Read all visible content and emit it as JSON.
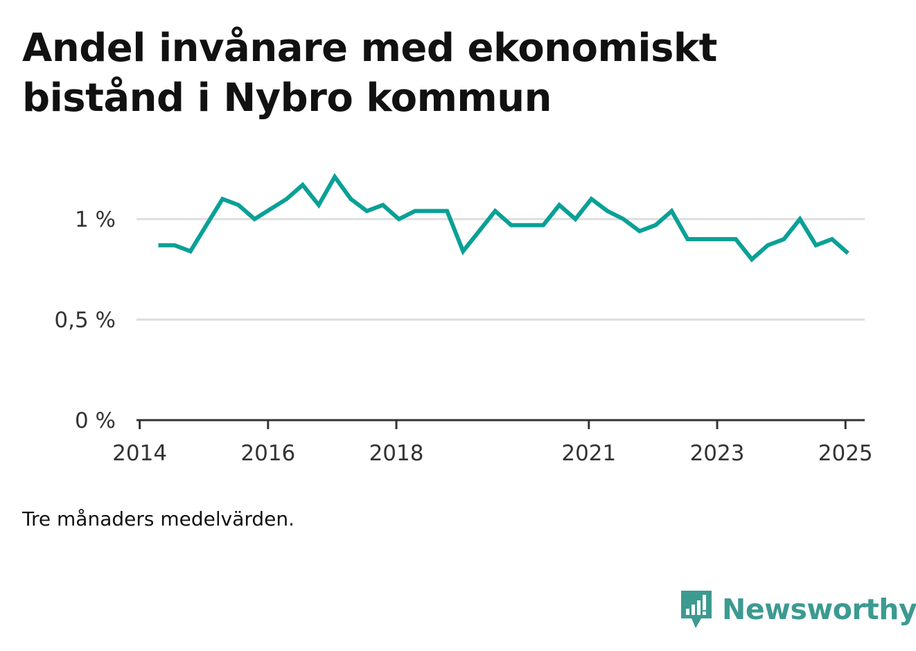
{
  "title_line1": "Andel invånare med ekonomiskt",
  "title_line2": "bistånd i Nybro kommun",
  "note": "Tre månaders medelvärden.",
  "brand": {
    "name": "Newsworthy",
    "icon": "newsworthy-logo-icon",
    "color": "#3c9a91"
  },
  "chart_data": {
    "type": "line",
    "line_color": "#0aa096",
    "ylim": [
      0,
      1.2
    ],
    "yticks": [
      {
        "value": 0,
        "label": "0 %"
      },
      {
        "value": 0.5,
        "label": "0,5 %"
      },
      {
        "value": 1,
        "label": "1 %"
      }
    ],
    "xlim": [
      2013.95,
      2025.3
    ],
    "xticks": [
      {
        "value": 2014.0,
        "label": "2014"
      },
      {
        "value": 2016.0,
        "label": "2016"
      },
      {
        "value": 2018.0,
        "label": "2018"
      },
      {
        "value": 2021.0,
        "label": "2021"
      },
      {
        "value": 2023.0,
        "label": "2023"
      },
      {
        "value": 2025.0,
        "label": "2025"
      }
    ],
    "grid": true,
    "series": [
      {
        "x": [
          2014.29,
          2014.54,
          2014.79,
          2015.04,
          2015.29,
          2015.54,
          2015.79,
          2016.04,
          2016.29,
          2016.54,
          2016.79,
          2017.04,
          2017.29,
          2017.54,
          2017.79,
          2018.04,
          2018.29,
          2018.54,
          2018.79,
          2019.04,
          2019.29,
          2019.54,
          2019.79,
          2020.04,
          2020.29,
          2020.54,
          2020.79,
          2021.04,
          2021.29,
          2021.54,
          2021.79,
          2022.04,
          2022.29,
          2022.54,
          2022.79,
          2023.04,
          2023.29,
          2023.54,
          2023.79,
          2024.04,
          2024.29,
          2024.54,
          2024.79,
          2025.04
        ],
        "y": [
          0.87,
          0.87,
          0.84,
          0.97,
          1.1,
          1.07,
          1.0,
          1.05,
          1.1,
          1.17,
          1.07,
          1.21,
          1.1,
          1.04,
          1.07,
          1.0,
          1.04,
          1.04,
          1.04,
          0.84,
          0.94,
          1.04,
          0.97,
          0.97,
          0.97,
          1.07,
          1.0,
          1.1,
          1.04,
          1.0,
          0.94,
          0.97,
          1.04,
          0.9,
          0.9,
          0.9,
          0.9,
          0.8,
          0.87,
          0.9,
          1.0,
          0.87,
          0.9,
          0.83
        ]
      }
    ]
  }
}
